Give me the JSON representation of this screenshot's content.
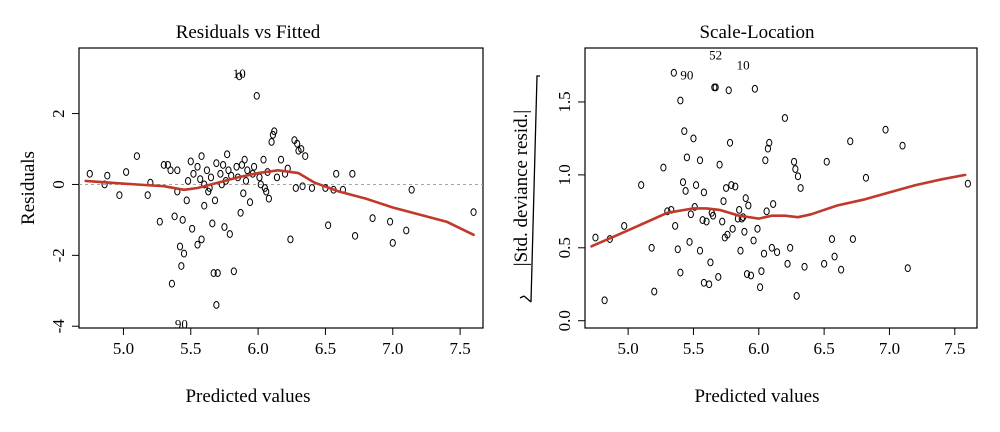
{
  "chart_data": [
    {
      "type": "scatter",
      "title": "Residuals vs Fitted",
      "xlabel": "Predicted values",
      "ylabel": "Residuals",
      "xlim": [
        4.67,
        7.67
      ],
      "ylim": [
        -4.05,
        3.85
      ],
      "xticks": [
        5.0,
        5.5,
        6.0,
        6.5,
        7.0,
        7.5
      ],
      "xtick_labels": [
        "5.0",
        "5.5",
        "6.0",
        "6.5",
        "7.0",
        "7.5"
      ],
      "yticks": [
        -4,
        -2,
        0,
        2
      ],
      "ytick_labels": [
        "-4",
        "-2",
        "0",
        "2"
      ],
      "reference_line": 0,
      "grid": false,
      "colors": {
        "points": "#000000",
        "smooth": "#c0392b",
        "reference": "#999999"
      },
      "point_labels": [
        {
          "text": "10",
          "x": 5.86,
          "y": 3.12
        },
        {
          "text": "90",
          "x": 5.43,
          "y": -3.95
        }
      ],
      "points": [
        [
          4.75,
          0.3
        ],
        [
          4.86,
          0.0
        ],
        [
          4.88,
          0.25
        ],
        [
          4.97,
          -0.3
        ],
        [
          5.02,
          0.35
        ],
        [
          5.1,
          0.8
        ],
        [
          5.18,
          -0.3
        ],
        [
          5.2,
          0.05
        ],
        [
          5.27,
          -1.05
        ],
        [
          5.3,
          0.55
        ],
        [
          5.33,
          0.55
        ],
        [
          5.35,
          0.4
        ],
        [
          5.36,
          -2.8
        ],
        [
          5.38,
          -0.9
        ],
        [
          5.4,
          -0.2
        ],
        [
          5.4,
          0.4
        ],
        [
          5.42,
          -1.75
        ],
        [
          5.43,
          -2.3
        ],
        [
          5.44,
          -1.0
        ],
        [
          5.45,
          -1.95
        ],
        [
          5.47,
          -0.45
        ],
        [
          5.48,
          0.1
        ],
        [
          5.5,
          0.65
        ],
        [
          5.51,
          -1.25
        ],
        [
          5.52,
          0.3
        ],
        [
          5.55,
          0.5
        ],
        [
          5.55,
          -1.7
        ],
        [
          5.57,
          0.15
        ],
        [
          5.58,
          -1.55
        ],
        [
          5.58,
          0.8
        ],
        [
          5.6,
          -0.6
        ],
        [
          5.6,
          0.0
        ],
        [
          5.62,
          0.4
        ],
        [
          5.63,
          -0.2
        ],
        [
          5.64,
          -0.1
        ],
        [
          5.65,
          0.2
        ],
        [
          5.66,
          -1.1
        ],
        [
          5.67,
          -2.5
        ],
        [
          5.68,
          -0.45
        ],
        [
          5.69,
          0.6
        ],
        [
          5.69,
          -3.4
        ],
        [
          5.7,
          -2.5
        ],
        [
          5.72,
          0.3
        ],
        [
          5.73,
          0.0
        ],
        [
          5.74,
          0.55
        ],
        [
          5.75,
          -1.2
        ],
        [
          5.76,
          0.1
        ],
        [
          5.77,
          0.85
        ],
        [
          5.78,
          0.4
        ],
        [
          5.79,
          -1.4
        ],
        [
          5.8,
          0.25
        ],
        [
          5.82,
          -2.45
        ],
        [
          5.84,
          0.5
        ],
        [
          5.85,
          0.2
        ],
        [
          5.86,
          3.05
        ],
        [
          5.87,
          -0.8
        ],
        [
          5.88,
          0.55
        ],
        [
          5.89,
          -0.25
        ],
        [
          5.9,
          0.7
        ],
        [
          5.91,
          0.1
        ],
        [
          5.92,
          0.4
        ],
        [
          5.94,
          -0.5
        ],
        [
          5.96,
          0.3
        ],
        [
          5.97,
          0.5
        ],
        [
          5.99,
          2.5
        ],
        [
          6.01,
          0.2
        ],
        [
          6.02,
          0.0
        ],
        [
          6.04,
          0.7
        ],
        [
          6.05,
          -0.1
        ],
        [
          6.06,
          -0.2
        ],
        [
          6.07,
          0.35
        ],
        [
          6.08,
          -0.4
        ],
        [
          6.1,
          1.2
        ],
        [
          6.11,
          1.4
        ],
        [
          6.12,
          1.5
        ],
        [
          6.14,
          0.2
        ],
        [
          6.17,
          0.7
        ],
        [
          6.2,
          0.3
        ],
        [
          6.22,
          0.45
        ],
        [
          6.24,
          -1.55
        ],
        [
          6.27,
          1.25
        ],
        [
          6.28,
          -0.1
        ],
        [
          6.29,
          1.15
        ],
        [
          6.3,
          0.95
        ],
        [
          6.32,
          1.0
        ],
        [
          6.33,
          -0.05
        ],
        [
          6.35,
          0.8
        ],
        [
          6.4,
          -0.1
        ],
        [
          6.5,
          -0.1
        ],
        [
          6.52,
          -1.15
        ],
        [
          6.56,
          -0.15
        ],
        [
          6.58,
          0.3
        ],
        [
          6.63,
          -0.15
        ],
        [
          6.7,
          0.3
        ],
        [
          6.72,
          -1.45
        ],
        [
          6.85,
          -0.95
        ],
        [
          6.98,
          -1.05
        ],
        [
          7.0,
          -1.65
        ],
        [
          7.1,
          -1.3
        ],
        [
          7.14,
          -0.15
        ],
        [
          7.6,
          -0.78
        ]
      ],
      "smooth": [
        [
          4.72,
          0.1
        ],
        [
          4.9,
          0.05
        ],
        [
          5.1,
          0.0
        ],
        [
          5.3,
          -0.05
        ],
        [
          5.45,
          -0.15
        ],
        [
          5.55,
          -0.1
        ],
        [
          5.7,
          0.05
        ],
        [
          5.85,
          0.2
        ],
        [
          6.0,
          0.32
        ],
        [
          6.15,
          0.4
        ],
        [
          6.3,
          0.32
        ],
        [
          6.42,
          0.05
        ],
        [
          6.6,
          -0.2
        ],
        [
          6.8,
          -0.4
        ],
        [
          7.0,
          -0.65
        ],
        [
          7.2,
          -0.85
        ],
        [
          7.4,
          -1.05
        ],
        [
          7.6,
          -1.42
        ]
      ]
    },
    {
      "type": "scatter",
      "title": "Scale-Location",
      "xlabel": "Predicted values",
      "ylabel": "|Std. deviance resid.|",
      "xlim": [
        4.67,
        7.67
      ],
      "ylim": [
        -0.05,
        1.87
      ],
      "xticks": [
        5.0,
        5.5,
        6.0,
        6.5,
        7.0,
        7.5
      ],
      "xtick_labels": [
        "5.0",
        "5.5",
        "6.0",
        "6.5",
        "7.0",
        "7.5"
      ],
      "yticks": [
        0.0,
        0.5,
        1.0,
        1.5
      ],
      "ytick_labels": [
        "0.0",
        "0.5",
        "1.0",
        "1.5"
      ],
      "grid": false,
      "colors": {
        "points": "#000000",
        "smooth": "#c0392b"
      },
      "point_labels": [
        {
          "text": "52",
          "x": 5.67,
          "y": 1.82
        },
        {
          "text": "10",
          "x": 5.88,
          "y": 1.75
        },
        {
          "text": "90",
          "x": 5.45,
          "y": 1.68
        }
      ],
      "points": [
        [
          4.75,
          0.57
        ],
        [
          4.82,
          0.14
        ],
        [
          4.86,
          0.56
        ],
        [
          4.97,
          0.65
        ],
        [
          5.1,
          0.93
        ],
        [
          5.18,
          0.5
        ],
        [
          5.2,
          0.2
        ],
        [
          5.27,
          1.05
        ],
        [
          5.3,
          0.75
        ],
        [
          5.33,
          0.76
        ],
        [
          5.35,
          1.7
        ],
        [
          5.36,
          0.65
        ],
        [
          5.38,
          0.49
        ],
        [
          5.4,
          1.51
        ],
        [
          5.4,
          0.33
        ],
        [
          5.42,
          0.95
        ],
        [
          5.43,
          1.3
        ],
        [
          5.44,
          0.89
        ],
        [
          5.45,
          1.12
        ],
        [
          5.47,
          0.54
        ],
        [
          5.48,
          0.73
        ],
        [
          5.5,
          1.25
        ],
        [
          5.51,
          0.78
        ],
        [
          5.52,
          0.93
        ],
        [
          5.55,
          0.48
        ],
        [
          5.55,
          1.1
        ],
        [
          5.57,
          0.69
        ],
        [
          5.58,
          0.88
        ],
        [
          5.58,
          0.26
        ],
        [
          5.6,
          0.68
        ],
        [
          5.62,
          0.25
        ],
        [
          5.63,
          0.4
        ],
        [
          5.64,
          0.74
        ],
        [
          5.65,
          0.72
        ],
        [
          5.66,
          1.6
        ],
        [
          5.67,
          1.6
        ],
        [
          5.69,
          0.3
        ],
        [
          5.7,
          1.07
        ],
        [
          5.72,
          0.68
        ],
        [
          5.73,
          0.82
        ],
        [
          5.74,
          0.57
        ],
        [
          5.75,
          0.91
        ],
        [
          5.76,
          0.59
        ],
        [
          5.77,
          1.58
        ],
        [
          5.78,
          1.22
        ],
        [
          5.79,
          0.93
        ],
        [
          5.8,
          0.63
        ],
        [
          5.82,
          0.92
        ],
        [
          5.84,
          0.7
        ],
        [
          5.85,
          0.76
        ],
        [
          5.86,
          0.48
        ],
        [
          5.87,
          0.7
        ],
        [
          5.88,
          0.71
        ],
        [
          5.89,
          0.61
        ],
        [
          5.9,
          0.84
        ],
        [
          5.91,
          0.32
        ],
        [
          5.92,
          0.79
        ],
        [
          5.94,
          0.31
        ],
        [
          5.96,
          0.55
        ],
        [
          5.97,
          1.59
        ],
        [
          5.99,
          0.63
        ],
        [
          6.01,
          0.23
        ],
        [
          6.02,
          0.34
        ],
        [
          6.04,
          0.46
        ],
        [
          6.05,
          1.1
        ],
        [
          6.06,
          0.75
        ],
        [
          6.07,
          1.18
        ],
        [
          6.08,
          1.22
        ],
        [
          6.1,
          0.5
        ],
        [
          6.11,
          0.8
        ],
        [
          6.14,
          0.47
        ],
        [
          6.2,
          1.39
        ],
        [
          6.22,
          0.39
        ],
        [
          6.24,
          0.5
        ],
        [
          6.27,
          1.09
        ],
        [
          6.28,
          1.04
        ],
        [
          6.29,
          0.17
        ],
        [
          6.3,
          0.99
        ],
        [
          6.32,
          0.91
        ],
        [
          6.35,
          0.37
        ],
        [
          6.5,
          0.39
        ],
        [
          6.52,
          1.09
        ],
        [
          6.56,
          0.56
        ],
        [
          6.58,
          0.44
        ],
        [
          6.63,
          0.35
        ],
        [
          6.7,
          1.23
        ],
        [
          6.72,
          0.56
        ],
        [
          6.82,
          0.98
        ],
        [
          6.97,
          1.31
        ],
        [
          7.1,
          1.2
        ],
        [
          7.14,
          0.36
        ],
        [
          7.6,
          0.94
        ]
      ],
      "smooth": [
        [
          4.72,
          0.51
        ],
        [
          4.9,
          0.58
        ],
        [
          5.1,
          0.66
        ],
        [
          5.3,
          0.74
        ],
        [
          5.5,
          0.77
        ],
        [
          5.6,
          0.77
        ],
        [
          5.7,
          0.76
        ],
        [
          5.85,
          0.72
        ],
        [
          6.0,
          0.7
        ],
        [
          6.1,
          0.72
        ],
        [
          6.2,
          0.72
        ],
        [
          6.3,
          0.71
        ],
        [
          6.4,
          0.73
        ],
        [
          6.6,
          0.79
        ],
        [
          6.8,
          0.83
        ],
        [
          7.0,
          0.88
        ],
        [
          7.2,
          0.93
        ],
        [
          7.4,
          0.97
        ],
        [
          7.58,
          1.0
        ]
      ]
    }
  ]
}
